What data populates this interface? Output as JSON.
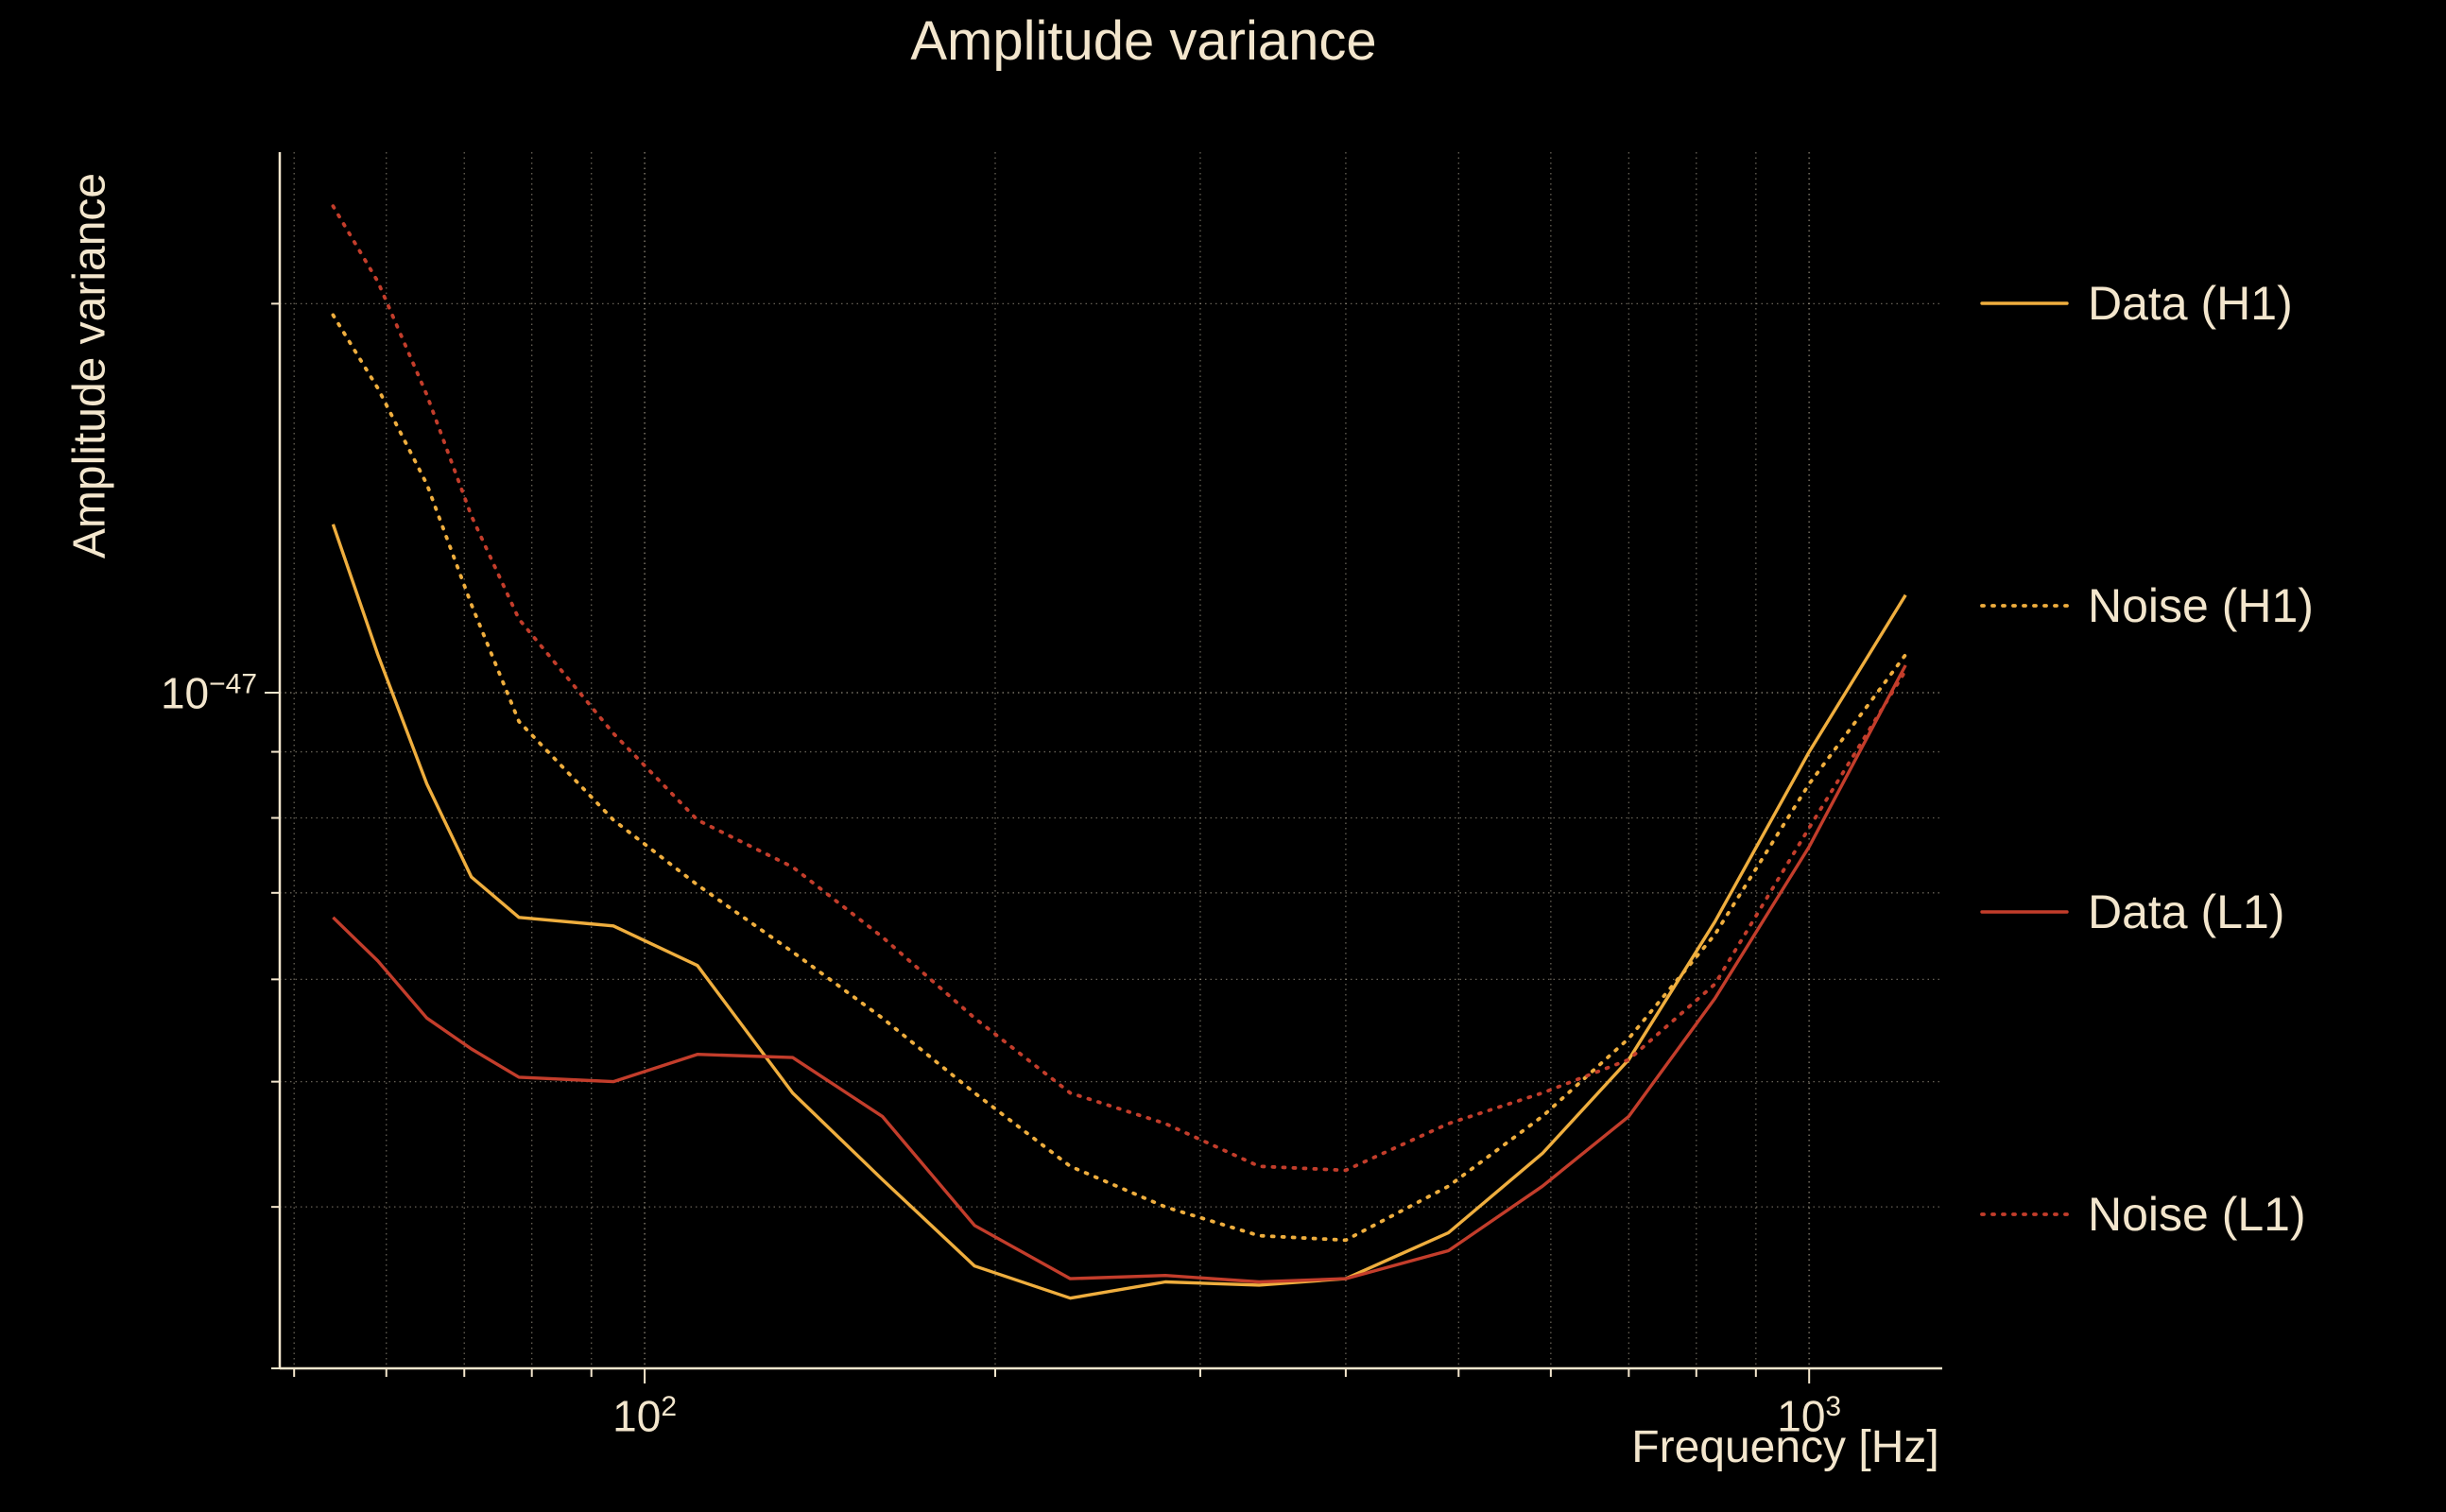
{
  "title": "Amplitude variance",
  "axes": {
    "x_label": "Frequency [Hz]",
    "y_label": "Amplitude variance"
  },
  "colors": {
    "background": "#000000",
    "text": "#f3e6cd",
    "grid": "rgba(243,230,205,0.42)",
    "gold": "#efae3e",
    "red": "#c33d2b"
  },
  "legend": {
    "items": [
      {
        "label": "Data (H1)",
        "color": "#efae3e",
        "dash": "none"
      },
      {
        "label": "Noise (H1)",
        "color": "#efae3e",
        "dash": "2 9"
      },
      {
        "label": "Data (L1)",
        "color": "#c33d2b",
        "dash": "none"
      },
      {
        "label": "Noise (L1)",
        "color": "#c33d2b",
        "dash": "2 9"
      }
    ]
  },
  "chart_data": {
    "type": "line",
    "title": "Amplitude variance",
    "xlabel": "Frequency [Hz]",
    "ylabel": "Amplitude variance",
    "xscale": "log",
    "yscale": "log",
    "grid": true,
    "legend_position": "right",
    "xlim": [
      48.6,
      1301
    ],
    "ylim": [
      3e-48,
      2.62e-47
    ],
    "x": [
      54,
      59,
      65,
      71,
      78,
      94,
      111,
      134,
      160,
      192,
      232,
      280,
      337,
      400,
      490,
      590,
      700,
      830,
      1000,
      1210
    ],
    "series": [
      {
        "name": "Data (H1)",
        "color": "#efae3e",
        "style": "solid",
        "values": [
          1.35e-47,
          1.07e-47,
          8.5e-48,
          7.2e-48,
          6.7e-48,
          6.6e-48,
          6.15e-48,
          4.9e-48,
          4.2e-48,
          3.6e-48,
          3.4e-48,
          3.5e-48,
          3.48e-48,
          3.52e-48,
          3.82e-48,
          4.4e-48,
          5.2e-48,
          6.65e-48,
          9e-48,
          1.19e-47
        ]
      },
      {
        "name": "Noise (H1)",
        "color": "#efae3e",
        "style": "dotted",
        "values": [
          1.96e-47,
          1.72e-47,
          1.45e-47,
          1.17e-47,
          9.5e-48,
          7.97e-48,
          7.1e-48,
          6.3e-48,
          5.6e-48,
          4.9e-48,
          4.3e-48,
          4e-48,
          3.8e-48,
          3.77e-48,
          4.15e-48,
          4.7e-48,
          5.4e-48,
          6.5e-48,
          8.5e-48,
          1.07e-47
        ]
      },
      {
        "name": "Data (L1)",
        "color": "#c33d2b",
        "style": "solid",
        "values": [
          6.7e-48,
          6.2e-48,
          5.6e-48,
          5.3e-48,
          5.04e-48,
          5e-48,
          5.25e-48,
          5.22e-48,
          4.7e-48,
          3.87e-48,
          3.52e-48,
          3.54e-48,
          3.5e-48,
          3.52e-48,
          3.7e-48,
          4.15e-48,
          4.7e-48,
          5.8e-48,
          7.6e-48,
          1.05e-47
        ]
      },
      {
        "name": "Noise (L1)",
        "color": "#c33d2b",
        "style": "dotted",
        "values": [
          2.38e-47,
          2.08e-47,
          1.7e-47,
          1.37e-47,
          1.14e-47,
          9.3e-48,
          7.97e-48,
          7.33e-48,
          6.47e-48,
          5.6e-48,
          4.9e-48,
          4.64e-48,
          4.3e-48,
          4.27e-48,
          4.64e-48,
          4.9e-48,
          5.2e-48,
          5.95e-48,
          7.86e-48,
          1.04e-47
        ]
      }
    ],
    "x_major_ticks": [
      {
        "value": 100,
        "base": "10",
        "exp": "2"
      },
      {
        "value": 1000,
        "base": "10",
        "exp": "3"
      }
    ],
    "y_major_ticks": [
      {
        "value": 1e-47,
        "base": "10",
        "exp": "−47"
      }
    ]
  }
}
